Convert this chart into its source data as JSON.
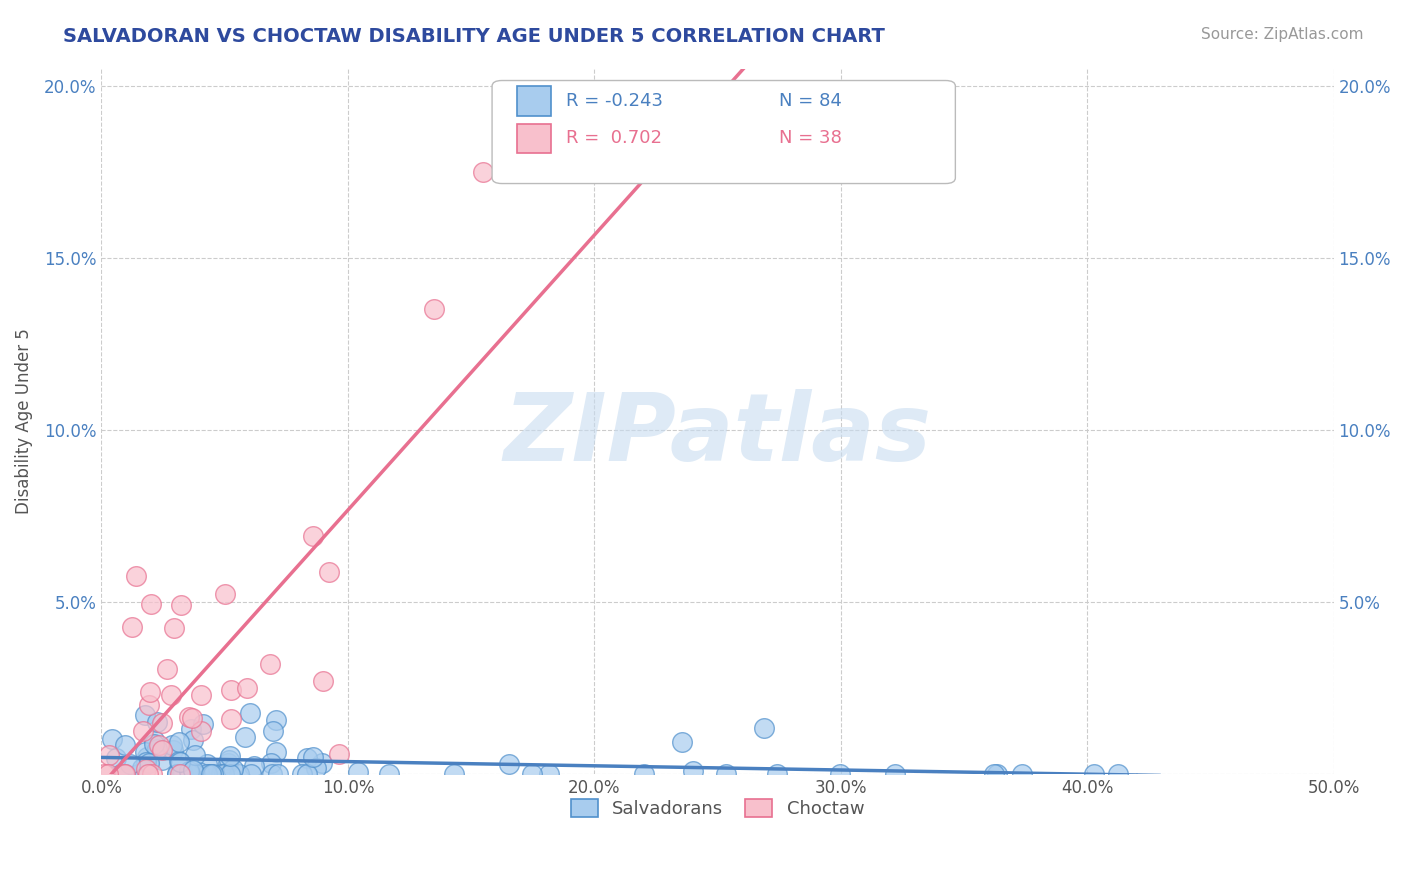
{
  "title": "SALVADORAN VS CHOCTAW DISABILITY AGE UNDER 5 CORRELATION CHART",
  "source": "Source: ZipAtlas.com",
  "ylabel": "Disability Age Under 5",
  "watermark": "ZIPatlas",
  "xlim": [
    0.0,
    0.5
  ],
  "ylim": [
    0.0,
    0.205
  ],
  "xtick_vals": [
    0.0,
    0.1,
    0.2,
    0.3,
    0.4,
    0.5
  ],
  "ytick_vals": [
    0.0,
    0.05,
    0.1,
    0.15,
    0.2
  ],
  "ytick_labels": [
    "",
    "5.0%",
    "10.0%",
    "15.0%",
    "20.0%"
  ],
  "xtick_labels": [
    "0.0%",
    "10.0%",
    "20.0%",
    "30.0%",
    "40.0%",
    "50.0%"
  ],
  "legend_blue_r": "-0.243",
  "legend_blue_n": "84",
  "legend_pink_r": "0.702",
  "legend_pink_n": "38",
  "blue_face": "#A8CCEE",
  "blue_edge": "#5090CC",
  "pink_face": "#F8C0CC",
  "pink_edge": "#E87090",
  "blue_line": "#4A80C0",
  "pink_line": "#E87090",
  "title_color": "#2E4A9E",
  "source_color": "#999999",
  "blue_n": 84,
  "pink_n": 38,
  "blue_R": -0.243,
  "pink_R": 0.702,
  "blue_seed": 42,
  "pink_seed": 77
}
